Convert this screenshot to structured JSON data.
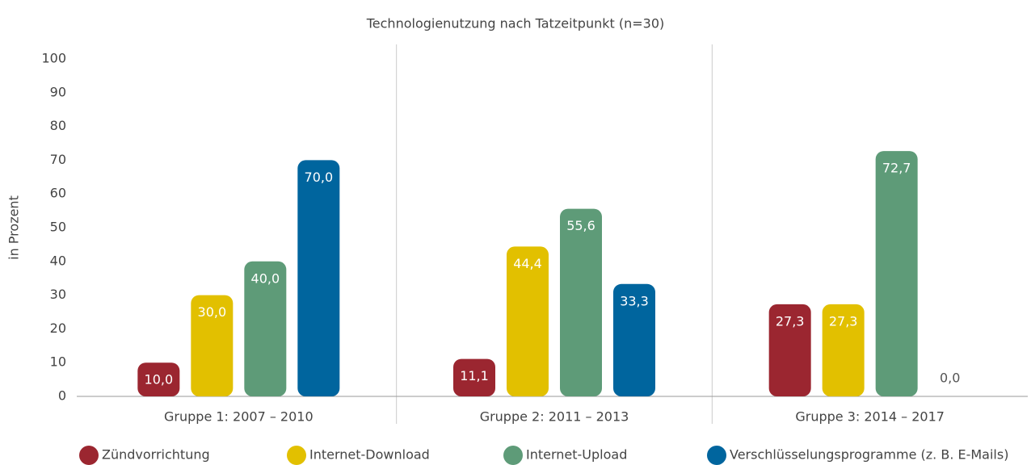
{
  "chart_data": {
    "type": "bar",
    "title": "Technologienutzung nach Tatzeitpunkt (n=30)",
    "y_label": "in Prozent",
    "categories": [
      "Gruppe 1: 2007 – 2010",
      "Gruppe 2: 2011 – 2013",
      "Gruppe 3: 2014 – 2017"
    ],
    "series": [
      {
        "name": "Zündvorrichtung",
        "color": "#9b2630",
        "values": [
          10.0,
          11.1,
          27.3
        ],
        "value_labels": [
          "10,0",
          "11,1",
          "27,3"
        ]
      },
      {
        "name": "Internet-Download",
        "color": "#e2c000",
        "values": [
          30.0,
          44.4,
          27.3
        ],
        "value_labels": [
          "30,0",
          "44,4",
          "27,3"
        ]
      },
      {
        "name": "Internet-Upload",
        "color": "#5e9b78",
        "values": [
          40.0,
          55.6,
          72.7
        ],
        "value_labels": [
          "40,0",
          "55,6",
          "72,7"
        ]
      },
      {
        "name": "Verschlüsselungsprogramme (z. B. E-Mails)",
        "color": "#00659e",
        "values": [
          70.0,
          33.3,
          0.0
        ],
        "value_labels": [
          "70,0",
          "33,3",
          "0,0"
        ]
      }
    ],
    "ylim": [
      0,
      100
    ],
    "yticks": [
      0,
      10,
      20,
      30,
      40,
      50,
      60,
      70,
      80,
      90,
      100
    ],
    "grid": false,
    "legend": "bottom"
  }
}
